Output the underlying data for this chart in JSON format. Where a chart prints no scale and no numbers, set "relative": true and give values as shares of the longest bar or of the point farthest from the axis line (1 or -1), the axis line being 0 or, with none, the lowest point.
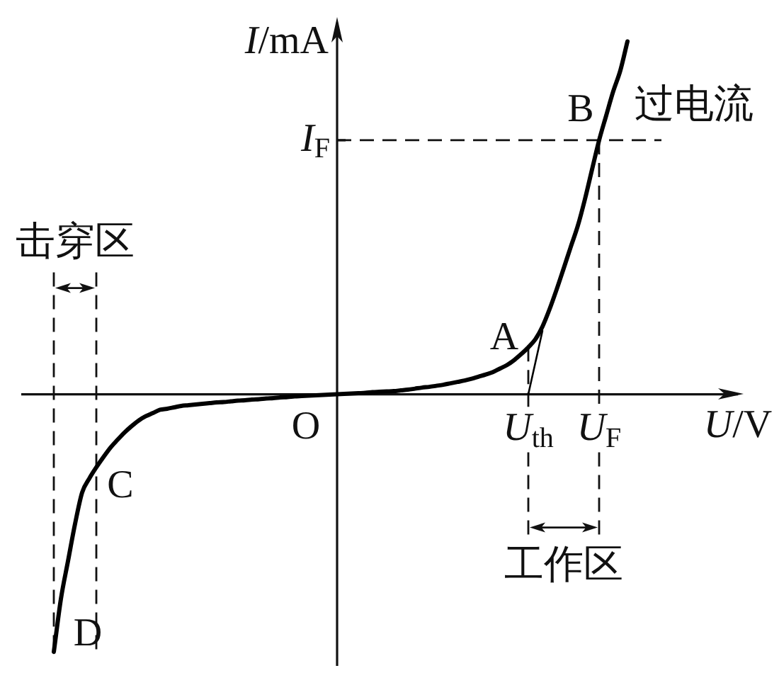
{
  "chart_data": {
    "type": "line",
    "relative": true,
    "xlabel": "U/V",
    "ylabel": "I/mA",
    "categories": [
      null,
      null,
      null,
      null,
      null,
      null,
      null,
      null,
      null,
      null,
      null,
      null,
      null,
      null,
      null,
      null,
      null,
      null,
      null,
      null,
      null,
      null,
      null,
      null,
      null,
      null,
      null,
      null,
      null,
      null,
      null,
      null,
      null,
      null,
      null,
      null,
      null,
      null,
      null,
      null,
      null,
      null,
      null,
      null,
      null,
      null,
      null,
      null,
      null,
      null,
      null,
      null,
      null,
      null,
      null,
      null,
      null,
      null,
      null,
      null,
      null,
      null,
      null,
      null,
      null,
      null,
      null,
      "U$_{th}$",
      null,
      null,
      null,
      null,
      null,
      null,
      null,
      null,
      null,
      "U$_{F}$",
      null,
      null,
      null,
      null
    ],
    "series": [
      {
        "color": "#000000",
        "values": [
          -0.73,
          -0.58,
          -0.473,
          -0.367,
          -0.278,
          -0.239,
          -0.207,
          -0.178,
          -0.151,
          -0.129,
          -0.108,
          -0.09,
          -0.074,
          -0.062,
          -0.053,
          -0.044,
          -0.041,
          -0.037,
          -0.033,
          -0.031,
          -0.029,
          -0.027,
          -0.025,
          -0.023,
          -0.022,
          -0.02,
          -0.018,
          -0.017,
          -0.015,
          -0.014,
          -0.012,
          -0.011,
          -0.009,
          -0.008,
          -0.006,
          -0.005,
          -0.004,
          -0.003,
          -0.002,
          -0.001,
          0,
          0.001,
          0.002,
          0.003,
          0.004,
          0.006,
          0.007,
          0.008,
          0.009,
          0.011,
          0.013,
          0.016,
          0.019,
          0.021,
          0.024,
          0.027,
          0.031,
          0.035,
          0.039,
          0.044,
          0.05,
          0.056,
          0.063,
          0.073,
          0.083,
          0.097,
          0.114,
          0.133,
          0.156,
          0.192,
          0.241,
          0.297,
          0.357,
          0.418,
          0.478,
          0.553,
          0.637,
          0.72,
          0.79,
          0.859,
          0.918,
          1
        ]
      },
      {
        "color": "#000000",
        "values": [
          null,
          null,
          null,
          null,
          null,
          null,
          null,
          null,
          null,
          null,
          null,
          null,
          null,
          null,
          null,
          null,
          null,
          null,
          null,
          null,
          null,
          null,
          null,
          null,
          null,
          null,
          null,
          null,
          null,
          null,
          null,
          null,
          null,
          null,
          null,
          null,
          null,
          null,
          null,
          null,
          null,
          null,
          null,
          null,
          null,
          null,
          null,
          null,
          null,
          null,
          null,
          null,
          null,
          null,
          null,
          null,
          null,
          null,
          null,
          null,
          null,
          null,
          null,
          null,
          null,
          null,
          null,
          0,
          0.09,
          0.18,
          null,
          null,
          null,
          null,
          null,
          null,
          null,
          null,
          null,
          null,
          null,
          null
        ]
      }
    ],
    "ref_lines": [
      {
        "axis": "y",
        "value": 0.72,
        "label": "I$_{F}$"
      }
    ],
    "annotations": [
      {
        "text": "A",
        "x": "U$_{th}$",
        "y": 0.133
      },
      {
        "text": "B",
        "x": "U$_{F}$",
        "y": 0.72
      },
      "C",
      "D",
      "过电流",
      "击穿区",
      "工作区",
      {
        "text": "O",
        "y": 0
      }
    ]
  }
}
